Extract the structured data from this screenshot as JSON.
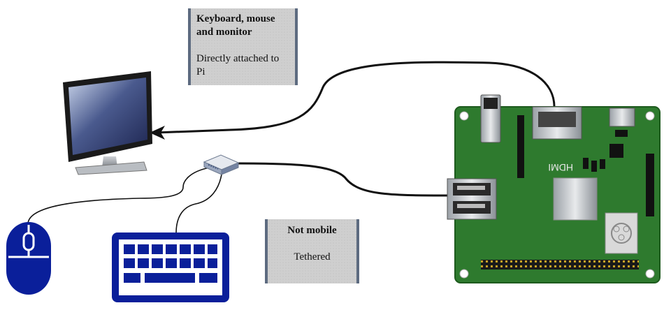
{
  "notes": {
    "keyboard": {
      "title": "Keyboard, mouse and monitor",
      "body": "Directly attached to Pi"
    },
    "mobility": {
      "title": "Not mobile",
      "body": "Tethered"
    }
  },
  "board": {
    "hdmi_label": "HDMI"
  },
  "colors": {
    "cable": "#111111",
    "board_green": "#2e7a2e",
    "peripheral_blue": "#0a1f9a",
    "note_bg": "#cfcfcf",
    "note_border": "#5d6b80"
  }
}
